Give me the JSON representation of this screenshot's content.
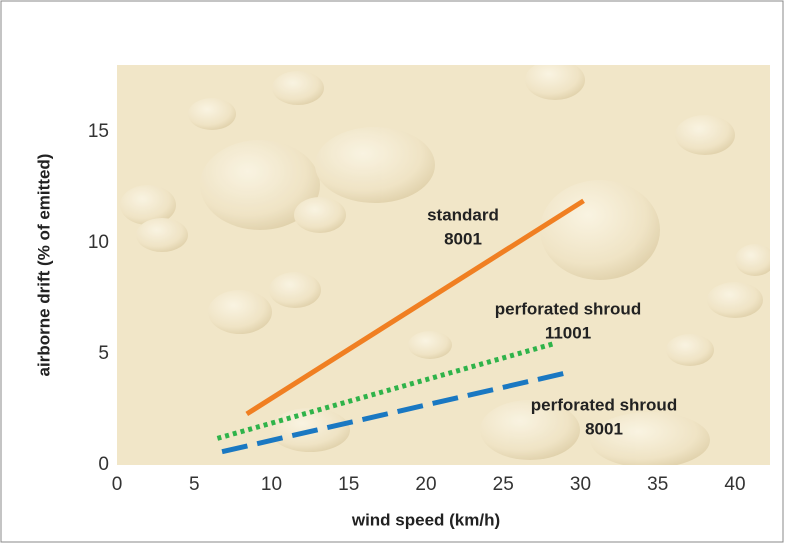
{
  "chart_data": {
    "type": "line",
    "xlabel": "wind speed (km/h)",
    "ylabel": "airborne drift (% of emitted)",
    "xlim": [
      0,
      42
    ],
    "ylim": [
      0,
      18
    ],
    "xticks": [
      0,
      5,
      10,
      15,
      20,
      25,
      30,
      35,
      40
    ],
    "yticks": [
      0,
      5,
      10,
      15
    ],
    "grid": false,
    "series": [
      {
        "label": [
          "standard",
          "8001"
        ],
        "color": "#f07f22",
        "dash": "solid",
        "x": [
          8.4,
          30.2
        ],
        "values": [
          2.3,
          11.9
        ]
      },
      {
        "label": [
          "perforated shroud",
          "11001"
        ],
        "color": "#2fb34a",
        "dash": "dotted",
        "x": [
          6.5,
          28.2
        ],
        "values": [
          1.2,
          5.45
        ]
      },
      {
        "label": [
          "perforated shroud",
          "8001"
        ],
        "color": "#1a78c2",
        "dash": "dashed",
        "x": [
          6.8,
          29.4
        ],
        "values": [
          0.6,
          4.2
        ]
      }
    ]
  }
}
